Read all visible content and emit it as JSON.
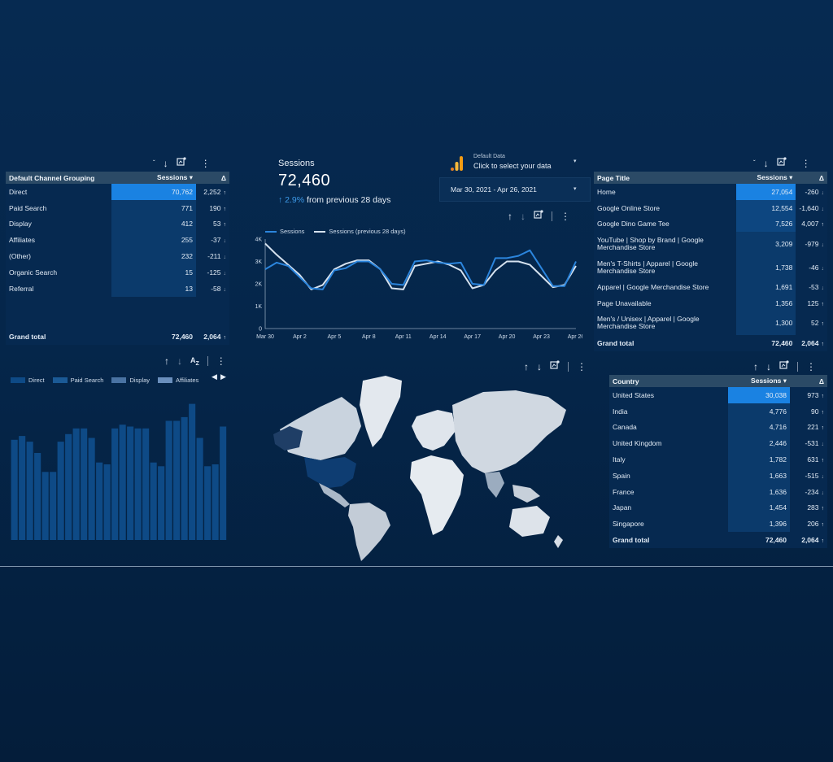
{
  "channel_table": {
    "headers": {
      "dimension": "Default Channel Grouping",
      "metric": "Sessions ▾",
      "delta": "Δ"
    },
    "rows": [
      {
        "label": "Direct",
        "value": "70,762",
        "delta": "2,252",
        "dir": "up",
        "bar": 1.0
      },
      {
        "label": "Paid Search",
        "value": "771",
        "delta": "190",
        "dir": "up",
        "bar": 0.011
      },
      {
        "label": "Display",
        "value": "412",
        "delta": "53",
        "dir": "up",
        "bar": 0.006
      },
      {
        "label": "Affiliates",
        "value": "255",
        "delta": "-37",
        "dir": "down",
        "bar": 0.004
      },
      {
        "label": "(Other)",
        "value": "232",
        "delta": "-211",
        "dir": "down",
        "bar": 0.003
      },
      {
        "label": "Organic Search",
        "value": "15",
        "delta": "-125",
        "dir": "down",
        "bar": 0.0
      },
      {
        "label": "Referral",
        "value": "13",
        "delta": "-58",
        "dir": "down",
        "bar": 0.0
      }
    ],
    "grand_total": {
      "label": "Grand total",
      "value": "72,460",
      "delta": "2,064",
      "dir": "up"
    }
  },
  "kpi": {
    "label": "Sessions",
    "value": "72,460",
    "change_pct": "2.9%",
    "change_text": "from previous 28 days"
  },
  "data_source": {
    "title": "Default Data",
    "subtitle": "Click to select your data"
  },
  "date_range": {
    "label": "Mar 30, 2021 - Apr 26, 2021"
  },
  "line_chart": {
    "legend": [
      "Sessions",
      "Sessions (previous 28 days)"
    ],
    "y_ticks": [
      "4K",
      "3K",
      "2K",
      "1K",
      "0"
    ],
    "x_ticks": [
      "Mar 30",
      "Apr 2",
      "Apr 5",
      "Apr 8",
      "Apr 11",
      "Apr 14",
      "Apr 17",
      "Apr 20",
      "Apr 23",
      "Apr 26"
    ]
  },
  "chart_data": [
    {
      "type": "line",
      "title": "",
      "xlabel": "",
      "ylabel": "",
      "ylim": [
        0,
        4000
      ],
      "x": [
        "Mar 30",
        "Mar 31",
        "Apr 1",
        "Apr 2",
        "Apr 3",
        "Apr 4",
        "Apr 5",
        "Apr 6",
        "Apr 7",
        "Apr 8",
        "Apr 9",
        "Apr 10",
        "Apr 11",
        "Apr 12",
        "Apr 13",
        "Apr 14",
        "Apr 15",
        "Apr 16",
        "Apr 17",
        "Apr 18",
        "Apr 19",
        "Apr 20",
        "Apr 21",
        "Apr 22",
        "Apr 23",
        "Apr 24",
        "Apr 25",
        "Apr 26"
      ],
      "series": [
        {
          "name": "Sessions",
          "color": "#2b85dd",
          "values": [
            2650,
            2950,
            2800,
            2300,
            1800,
            1750,
            2600,
            2700,
            3000,
            3000,
            2650,
            2000,
            1950,
            3000,
            3050,
            2950,
            2900,
            2950,
            2000,
            1950,
            3150,
            3150,
            3250,
            3500,
            2700,
            1900,
            1900,
            3000
          ]
        },
        {
          "name": "Sessions (previous 28 days)",
          "color": "#d6e2ef",
          "values": [
            3800,
            3300,
            2850,
            2400,
            1750,
            1950,
            2650,
            2900,
            3050,
            3050,
            2650,
            1800,
            1750,
            2800,
            2900,
            3000,
            2850,
            2600,
            1800,
            1950,
            2600,
            3000,
            3000,
            2850,
            2350,
            1850,
            1950,
            2800
          ]
        }
      ]
    },
    {
      "type": "bar",
      "title": "",
      "xlabel": "",
      "ylabel": "",
      "series": [
        {
          "name": "Direct",
          "color": "#0e4a86",
          "values": [
            2650,
            2750,
            2600,
            2300,
            1800,
            1800,
            2600,
            2800,
            2950,
            2950,
            2700,
            2050,
            2000,
            2950,
            3050,
            3000,
            2950,
            2950,
            2050,
            1950,
            3150,
            3150,
            3250,
            3600,
            2700,
            1950,
            2000,
            3000
          ]
        }
      ],
      "legend": [
        "Direct",
        "Paid Search",
        "Display",
        "Affiliates"
      ],
      "legend_colors": [
        "#0e4a86",
        "#1b5a96",
        "#4a73a3",
        "#6a8fbd"
      ]
    }
  ],
  "page_table": {
    "headers": {
      "dimension": "Page Title",
      "metric": "Sessions ▾",
      "delta": "Δ"
    },
    "rows": [
      {
        "label": "Home",
        "value": "27,054",
        "delta": "-260",
        "dir": "down",
        "bar": 1.0
      },
      {
        "label": "Google Online Store",
        "value": "12,554",
        "delta": "-1,640",
        "dir": "down",
        "bar": 0.46
      },
      {
        "label": "Google Dino Game Tee",
        "value": "7,526",
        "delta": "4,007",
        "dir": "up",
        "bar": 0.28
      },
      {
        "label": "YouTube | Shop by Brand | Google Merchandise Store",
        "value": "3,209",
        "delta": "-979",
        "dir": "down",
        "bar": 0.12
      },
      {
        "label": "Men's T-Shirts | Apparel | Google Merchandise Store",
        "value": "1,738",
        "delta": "-46",
        "dir": "down",
        "bar": 0.06
      },
      {
        "label": "Apparel | Google Merchandise Store",
        "value": "1,691",
        "delta": "-53",
        "dir": "down",
        "bar": 0.06
      },
      {
        "label": "Page Unavailable",
        "value": "1,356",
        "delta": "125",
        "dir": "up",
        "bar": 0.05
      },
      {
        "label": "Men's / Unisex | Apparel | Google Merchandise Store",
        "value": "1,300",
        "delta": "52",
        "dir": "up",
        "bar": 0.05
      }
    ],
    "grand_total": {
      "label": "Grand total",
      "value": "72,460",
      "delta": "2,064",
      "dir": "up"
    }
  },
  "country_table": {
    "headers": {
      "dimension": "Country",
      "metric": "Sessions ▾",
      "delta": "Δ"
    },
    "rows": [
      {
        "label": "United States",
        "value": "30,038",
        "delta": "973",
        "dir": "up",
        "bar": 1.0
      },
      {
        "label": "India",
        "value": "4,776",
        "delta": "90",
        "dir": "up",
        "bar": 0.16
      },
      {
        "label": "Canada",
        "value": "4,716",
        "delta": "221",
        "dir": "up",
        "bar": 0.16
      },
      {
        "label": "United Kingdom",
        "value": "2,446",
        "delta": "-531",
        "dir": "down",
        "bar": 0.08
      },
      {
        "label": "Italy",
        "value": "1,782",
        "delta": "631",
        "dir": "up",
        "bar": 0.06
      },
      {
        "label": "Spain",
        "value": "1,663",
        "delta": "-515",
        "dir": "down",
        "bar": 0.06
      },
      {
        "label": "France",
        "value": "1,636",
        "delta": "-234",
        "dir": "down",
        "bar": 0.05
      },
      {
        "label": "Japan",
        "value": "1,454",
        "delta": "283",
        "dir": "up",
        "bar": 0.05
      },
      {
        "label": "Singapore",
        "value": "1,396",
        "delta": "206",
        "dir": "up",
        "bar": 0.05
      }
    ],
    "grand_total": {
      "label": "Grand total",
      "value": "72,460",
      "delta": "2,064",
      "dir": "up"
    }
  },
  "icons": {
    "sort_up": "↑",
    "sort_down": "↓",
    "more": "⋮",
    "sort_az": "A͢Z",
    "chevron_down": "▾",
    "prev": "◀",
    "next": "▶",
    "delta_up": "↑",
    "delta_down": "↓"
  },
  "colors": {
    "accent": "#1a82e2",
    "bar_bg": "#0b3a6b",
    "header": "#2b4a66",
    "orange": "#f39c12"
  }
}
